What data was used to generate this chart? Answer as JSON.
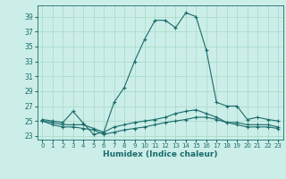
{
  "xlabel": "Humidex (Indice chaleur)",
  "ylabel": "",
  "bg_color": "#cceee8",
  "grid_color": "#aaddcc",
  "line_color": "#1a6b6b",
  "xlim": [
    -0.5,
    23.5
  ],
  "ylim": [
    22.5,
    40.5
  ],
  "yticks": [
    23,
    25,
    27,
    29,
    31,
    33,
    35,
    37,
    39
  ],
  "xticks": [
    0,
    1,
    2,
    3,
    4,
    5,
    6,
    7,
    8,
    9,
    10,
    11,
    12,
    13,
    14,
    15,
    16,
    17,
    18,
    19,
    20,
    21,
    22,
    23
  ],
  "series": [
    [
      25.2,
      25.0,
      24.8,
      26.3,
      24.7,
      23.2,
      23.5,
      27.5,
      29.5,
      33.0,
      36.0,
      38.5,
      38.5,
      37.5,
      39.5,
      39.0,
      34.5,
      27.5,
      27.0,
      27.0,
      25.2,
      25.5,
      25.2,
      25.0
    ],
    [
      25.0,
      24.8,
      24.5,
      24.5,
      24.5,
      24.0,
      23.5,
      24.2,
      24.5,
      24.8,
      25.0,
      25.2,
      25.5,
      26.0,
      26.3,
      26.5,
      26.0,
      25.5,
      24.8,
      24.8,
      24.5,
      24.5,
      24.5,
      24.2
    ],
    [
      25.0,
      24.5,
      24.2,
      24.2,
      24.0,
      23.8,
      23.2,
      23.5,
      23.8,
      24.0,
      24.2,
      24.5,
      24.8,
      25.0,
      25.2,
      25.5,
      25.5,
      25.2,
      24.8,
      24.5,
      24.2,
      24.2,
      24.2,
      24.0
    ]
  ],
  "marker": "+",
  "markersize": 3,
  "linewidth": 0.8
}
